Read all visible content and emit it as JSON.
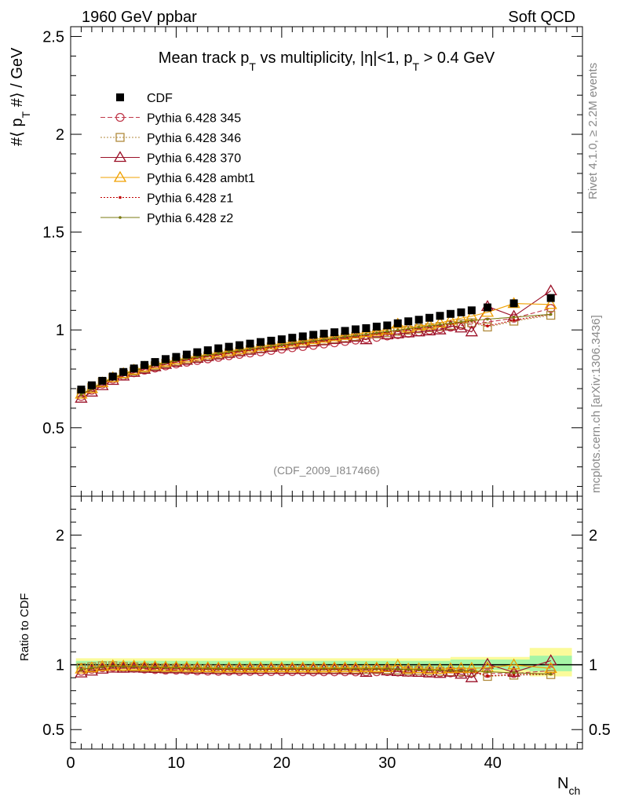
{
  "header": {
    "energy_label": "1960 GeV ppbar",
    "process_label": "Soft QCD"
  },
  "side_labels": {
    "rivet": "Rivet 4.1.0, ≥ 2.2M events",
    "mcplots": "mcplots.cern.ch [arXiv:1306.3436]"
  },
  "watermark": "(CDF_2009_I817466)",
  "colors": {
    "cdf": "#000000",
    "p345": "#c0394b",
    "p346": "#b08a3c",
    "p370": "#9b1027",
    "ambt1": "#f0a000",
    "z1": "#c00000",
    "z2": "#7a7a10",
    "band_inner": "#a6f5a6",
    "band_outer": "#fbfb9a"
  },
  "chart_data": [
    {
      "type": "scatter",
      "title_parts": {
        "prefix": "Mean track p",
        "sub1": "T",
        "middle": " vs multiplicity, |η|<1, p",
        "sub2": "T",
        "suffix": " > 0.4 GeV"
      },
      "ylabel_parts": {
        "a": "#⟨ p",
        "sub": "T",
        "b": " #⟩ / GeV"
      },
      "xlabel_parts": {
        "main": "N",
        "sub": "ch"
      },
      "xlim": [
        0,
        48.5
      ],
      "ylim": [
        0.15,
        2.55
      ],
      "y_ticks": [
        0.5,
        1,
        1.5,
        2,
        2.5
      ],
      "y_tick_labels": [
        "0.5",
        "1",
        "1.5",
        "2",
        "2.5"
      ],
      "legend_position": "top-left",
      "series": [
        {
          "key": "cdf",
          "name": "CDF",
          "marker": "square",
          "line": "none",
          "x": [
            1,
            2,
            3,
            4,
            5,
            6,
            7,
            8,
            9,
            10,
            11,
            12,
            13,
            14,
            15,
            16,
            17,
            18,
            19,
            20,
            21,
            22,
            23,
            24,
            25,
            26,
            27,
            28,
            29,
            30,
            31,
            32,
            33,
            34,
            35,
            36,
            37,
            38,
            39.5,
            42,
            45.5
          ],
          "y": [
            0.695,
            0.717,
            0.74,
            0.762,
            0.785,
            0.803,
            0.821,
            0.836,
            0.851,
            0.862,
            0.874,
            0.886,
            0.896,
            0.906,
            0.914,
            0.922,
            0.93,
            0.938,
            0.945,
            0.952,
            0.96,
            0.967,
            0.975,
            0.981,
            0.988,
            0.995,
            1.003,
            1.009,
            1.017,
            1.023,
            1.034,
            1.044,
            1.052,
            1.062,
            1.072,
            1.082,
            1.09,
            1.1,
            1.115,
            1.136,
            1.163
          ]
        },
        {
          "key": "p345",
          "name": "Pythia 6.428 345",
          "marker": "circle",
          "line": "dashed",
          "x": [
            1,
            2,
            3,
            4,
            5,
            6,
            7,
            8,
            9,
            10,
            11,
            12,
            13,
            14,
            15,
            16,
            17,
            18,
            19,
            20,
            21,
            22,
            23,
            24,
            25,
            26,
            27,
            28,
            29,
            30,
            31,
            32,
            33,
            34,
            35,
            36,
            37,
            38,
            39.5,
            42,
            45.5
          ],
          "y": [
            0.66,
            0.692,
            0.723,
            0.748,
            0.765,
            0.781,
            0.794,
            0.805,
            0.816,
            0.826,
            0.835,
            0.844,
            0.852,
            0.86,
            0.868,
            0.875,
            0.882,
            0.888,
            0.895,
            0.902,
            0.909,
            0.915,
            0.921,
            0.928,
            0.934,
            0.941,
            0.948,
            0.955,
            0.962,
            0.969,
            0.976,
            0.983,
            0.99,
            0.998,
            1.006,
            1.014,
            1.022,
            1.03,
            1.04,
            1.06,
            1.11
          ]
        },
        {
          "key": "p346",
          "name": "Pythia 6.428 346",
          "marker": "square-open",
          "line": "dotted",
          "x": [
            1,
            2,
            3,
            4,
            5,
            6,
            7,
            8,
            9,
            10,
            11,
            12,
            13,
            14,
            15,
            16,
            17,
            18,
            19,
            20,
            21,
            22,
            23,
            24,
            25,
            26,
            27,
            28,
            29,
            30,
            31,
            32,
            33,
            34,
            35,
            36,
            37,
            38,
            39.5,
            42,
            45.5
          ],
          "y": [
            0.68,
            0.706,
            0.734,
            0.756,
            0.774,
            0.79,
            0.804,
            0.817,
            0.829,
            0.839,
            0.849,
            0.858,
            0.867,
            0.875,
            0.883,
            0.891,
            0.899,
            0.906,
            0.913,
            0.92,
            0.927,
            0.934,
            0.941,
            0.947,
            0.954,
            0.96,
            0.967,
            0.973,
            0.98,
            0.986,
            0.993,
            0.999,
            1.006,
            1.012,
            1.018,
            1.024,
            1.031,
            1.037,
            1.015,
            1.045,
            1.075
          ]
        },
        {
          "key": "p370",
          "name": "Pythia 6.428 370",
          "marker": "triangle-open",
          "line": "solid",
          "x": [
            1,
            2,
            3,
            4,
            5,
            6,
            7,
            8,
            9,
            10,
            11,
            12,
            13,
            14,
            15,
            16,
            17,
            18,
            19,
            20,
            21,
            22,
            23,
            24,
            25,
            26,
            27,
            28,
            29,
            30,
            31,
            32,
            33,
            34,
            35,
            36,
            37,
            38,
            39.5,
            42,
            45.5
          ],
          "y": [
            0.651,
            0.682,
            0.715,
            0.742,
            0.764,
            0.783,
            0.799,
            0.812,
            0.824,
            0.835,
            0.845,
            0.855,
            0.864,
            0.872,
            0.88,
            0.888,
            0.896,
            0.904,
            0.911,
            0.918,
            0.925,
            0.932,
            0.938,
            0.944,
            0.951,
            0.957,
            0.963,
            0.95,
            0.985,
            0.975,
            0.98,
            0.985,
            0.99,
            0.995,
            1.0,
            1.02,
            1.01,
            0.99,
            1.12,
            1.07,
            1.2
          ]
        },
        {
          "key": "ambt1",
          "name": "Pythia 6.428 ambt1",
          "marker": "triangle-open",
          "line": "solid",
          "x": [
            1,
            2,
            3,
            4,
            5,
            6,
            7,
            8,
            9,
            10,
            11,
            12,
            13,
            14,
            15,
            16,
            17,
            18,
            19,
            20,
            21,
            22,
            23,
            24,
            25,
            26,
            27,
            28,
            29,
            30,
            31,
            32,
            33,
            34,
            35,
            36,
            37,
            38,
            39.5,
            42,
            45.5
          ],
          "y": [
            0.672,
            0.7,
            0.73,
            0.756,
            0.777,
            0.795,
            0.81,
            0.824,
            0.836,
            0.847,
            0.857,
            0.867,
            0.876,
            0.884,
            0.892,
            0.9,
            0.908,
            0.916,
            0.923,
            0.93,
            0.937,
            0.944,
            0.951,
            0.958,
            0.965,
            0.972,
            0.979,
            0.986,
            0.993,
            1.0,
            1.03,
            1.01,
            1.02,
            1.025,
            1.035,
            1.05,
            1.06,
            1.07,
            1.09,
            1.135,
            1.13
          ]
        },
        {
          "key": "z1",
          "name": "Pythia 6.428 z1",
          "marker": "dot",
          "line": "dotted",
          "x": [
            1,
            2,
            3,
            4,
            5,
            6,
            7,
            8,
            9,
            10,
            11,
            12,
            13,
            14,
            15,
            16,
            17,
            18,
            19,
            20,
            21,
            22,
            23,
            24,
            25,
            26,
            27,
            28,
            29,
            30,
            31,
            32,
            33,
            34,
            35,
            36,
            37,
            38,
            39.5,
            42,
            45.5
          ],
          "y": [
            0.668,
            0.697,
            0.727,
            0.752,
            0.772,
            0.79,
            0.805,
            0.818,
            0.83,
            0.84,
            0.85,
            0.859,
            0.868,
            0.876,
            0.884,
            0.892,
            0.899,
            0.906,
            0.913,
            0.92,
            0.927,
            0.934,
            0.941,
            0.948,
            0.955,
            0.962,
            0.968,
            0.975,
            0.982,
            0.989,
            0.996,
            1.003,
            1.01,
            1.017,
            1.024,
            1.031,
            1.038,
            1.045,
            1.02,
            1.05,
            1.08
          ]
        },
        {
          "key": "z2",
          "name": "Pythia 6.428 z2",
          "marker": "dot",
          "line": "solid",
          "x": [
            1,
            2,
            3,
            4,
            5,
            6,
            7,
            8,
            9,
            10,
            11,
            12,
            13,
            14,
            15,
            16,
            17,
            18,
            19,
            20,
            21,
            22,
            23,
            24,
            25,
            26,
            27,
            28,
            29,
            30,
            31,
            32,
            33,
            34,
            35,
            36,
            37,
            38,
            39.5,
            42,
            45.5
          ],
          "y": [
            0.67,
            0.699,
            0.729,
            0.754,
            0.774,
            0.792,
            0.807,
            0.82,
            0.832,
            0.843,
            0.853,
            0.862,
            0.871,
            0.879,
            0.887,
            0.895,
            0.902,
            0.909,
            0.916,
            0.923,
            0.93,
            0.937,
            0.944,
            0.951,
            0.958,
            0.965,
            0.971,
            0.978,
            0.985,
            0.992,
            0.999,
            1.006,
            1.013,
            1.02,
            1.027,
            1.034,
            1.041,
            1.048,
            1.055,
            1.065,
            1.08
          ]
        }
      ]
    },
    {
      "type": "line",
      "ylabel": "Ratio to CDF",
      "xlabel_parts": {
        "main": "N",
        "sub": "ch"
      },
      "xlim": [
        0,
        48.5
      ],
      "ylim": [
        0.35,
        2.3
      ],
      "x_ticks": [
        0,
        10,
        20,
        30,
        40
      ],
      "x_tick_labels": [
        "0",
        "10",
        "20",
        "30",
        "40"
      ],
      "y_ticks": [
        0.5,
        1,
        2
      ],
      "y_tick_labels": [
        "0.5",
        "1",
        "2"
      ],
      "reference_line": 1,
      "band_inner": {
        "x": [
          0.5,
          36,
          36,
          43.5,
          43.5,
          47.5
        ],
        "lo": [
          0.97,
          0.97,
          0.96,
          0.96,
          0.95,
          0.95
        ],
        "hi": [
          1.03,
          1.03,
          1.04,
          1.04,
          1.07,
          1.07
        ]
      },
      "band_outer": {
        "x": [
          0.5,
          36,
          36,
          43.5,
          43.5,
          47.5
        ],
        "lo": [
          0.95,
          0.95,
          0.94,
          0.94,
          0.91,
          0.91
        ],
        "hi": [
          1.05,
          1.05,
          1.06,
          1.06,
          1.13,
          1.13
        ]
      }
    }
  ]
}
